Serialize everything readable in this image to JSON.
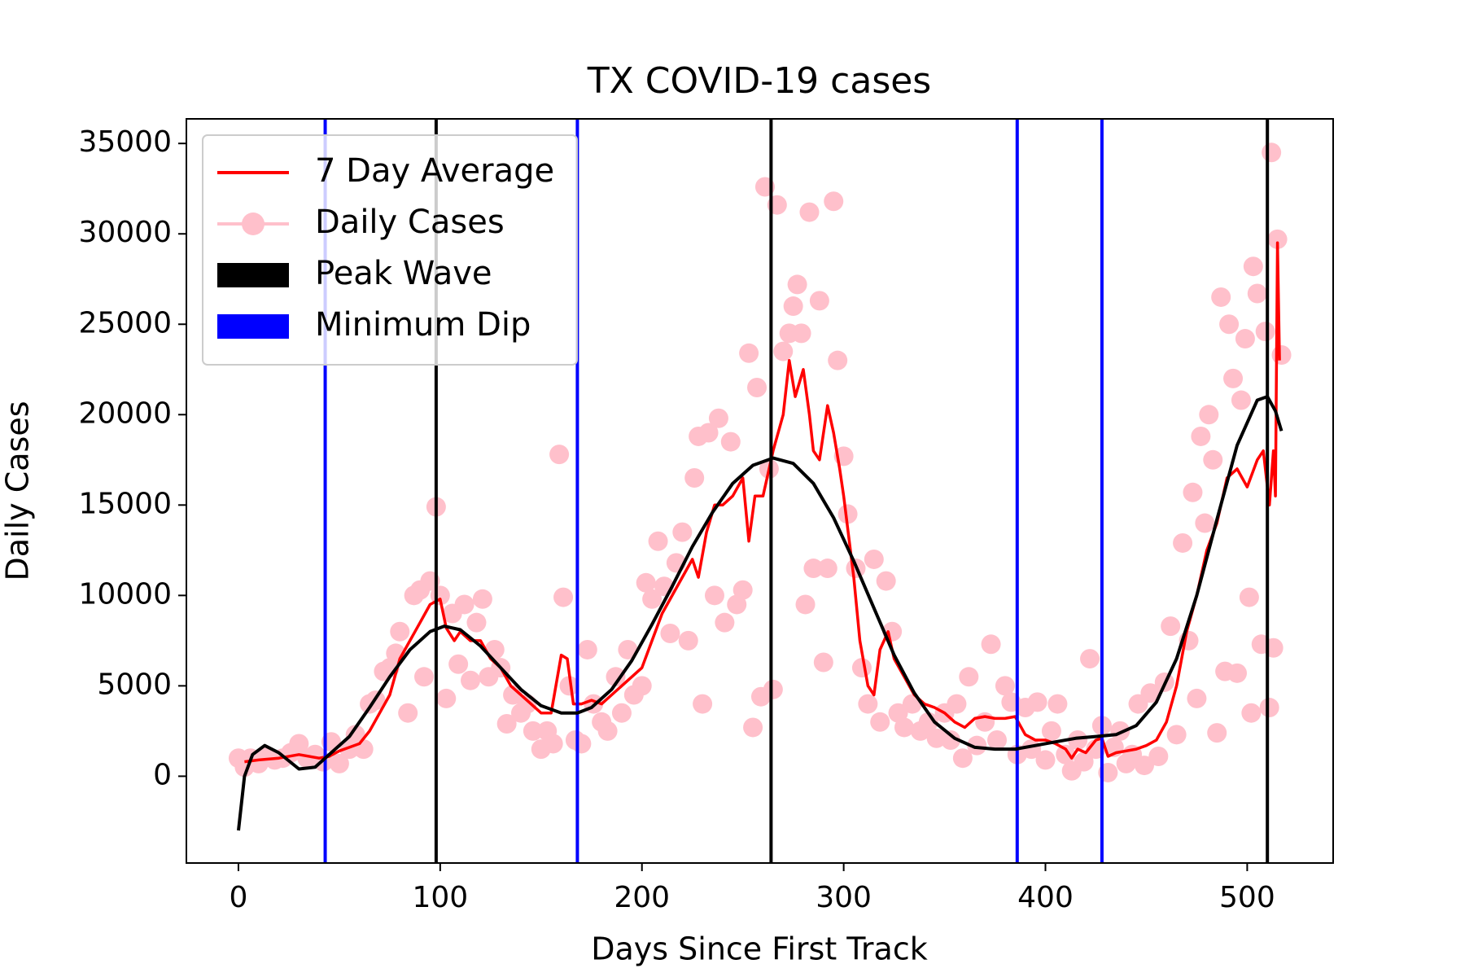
{
  "chart_data": {
    "type": "line",
    "title": "TX COVID-19 cases",
    "xlabel": "Days Since First Track",
    "ylabel": "Daily Cases",
    "xlim": [
      -25.8,
      542.6
    ],
    "ylim": [
      -4800,
      36360
    ],
    "xticks": [
      0,
      100,
      200,
      300,
      400,
      500
    ],
    "yticks": [
      0,
      5000,
      10000,
      15000,
      20000,
      25000,
      30000,
      35000
    ],
    "legend": "upper left",
    "series": [
      {
        "name": "7 Day Average",
        "color": "#ff0000",
        "marker": "none",
        "x": [
          3,
          10,
          20,
          30,
          40,
          45,
          50,
          55,
          60,
          65,
          70,
          75,
          80,
          85,
          90,
          95,
          100,
          103,
          107,
          110,
          115,
          120,
          125,
          130,
          135,
          140,
          145,
          150,
          155,
          160,
          163,
          166,
          170,
          175,
          180,
          185,
          190,
          195,
          200,
          205,
          210,
          215,
          220,
          225,
          228,
          232,
          236,
          240,
          245,
          250,
          253,
          256,
          260,
          265,
          270,
          273,
          276,
          280,
          283,
          285,
          288,
          292,
          295,
          298,
          300,
          305,
          308,
          312,
          315,
          318,
          322,
          325,
          330,
          335,
          340,
          345,
          350,
          355,
          360,
          365,
          370,
          375,
          380,
          385,
          390,
          395,
          400,
          405,
          410,
          413,
          416,
          420,
          425,
          428,
          431,
          435,
          440,
          445,
          450,
          455,
          460,
          465,
          470,
          475,
          480,
          485,
          490,
          495,
          500,
          505,
          508,
          511,
          513,
          514,
          515,
          516
        ],
        "values": [
          800,
          900,
          1000,
          1200,
          1000,
          1100,
          1400,
          1600,
          1800,
          2500,
          3500,
          4500,
          6500,
          7500,
          8500,
          9500,
          9800,
          8200,
          7500,
          8000,
          7500,
          7500,
          6500,
          6000,
          5000,
          4500,
          4000,
          3500,
          3500,
          6700,
          6500,
          4000,
          4000,
          4200,
          4000,
          4500,
          5000,
          5500,
          6000,
          7500,
          9000,
          10000,
          11000,
          12000,
          11000,
          13500,
          15000,
          15000,
          15500,
          16500,
          13000,
          15500,
          15500,
          18000,
          20000,
          23000,
          21000,
          22500,
          20000,
          18000,
          17500,
          20500,
          19000,
          17000,
          15500,
          11000,
          7500,
          5000,
          4500,
          7000,
          8000,
          6500,
          5500,
          4500,
          4000,
          3800,
          3500,
          3000,
          2700,
          3200,
          3300,
          3200,
          3200,
          3300,
          2300,
          2000,
          2000,
          1800,
          1500,
          1000,
          1500,
          1300,
          2000,
          2100,
          1100,
          1300,
          1400,
          1500,
          1700,
          2000,
          3000,
          5000,
          8000,
          10000,
          12500,
          14000,
          16500,
          17000,
          16000,
          17500,
          18000,
          15000,
          18000,
          15500,
          29500,
          23000
        ]
      },
      {
        "name": "Daily Cases",
        "color": "#ffc0cb",
        "marker": "circle",
        "x": [
          0,
          3,
          6,
          10,
          14,
          18,
          22,
          26,
          30,
          34,
          38,
          42,
          46,
          50,
          55,
          58,
          62,
          65,
          68,
          72,
          75,
          78,
          80,
          84,
          87,
          90,
          92,
          95,
          98,
          100,
          103,
          106,
          109,
          112,
          115,
          118,
          121,
          124,
          127,
          130,
          133,
          136,
          140,
          143,
          146,
          150,
          153,
          156,
          159,
          161,
          164,
          167,
          170,
          173,
          176,
          180,
          183,
          187,
          190,
          193,
          196,
          200,
          202,
          205,
          208,
          211,
          214,
          217,
          220,
          223,
          226,
          228,
          230,
          233,
          236,
          238,
          241,
          244,
          247,
          250,
          253,
          255,
          257,
          259,
          261,
          263,
          265,
          267,
          270,
          273,
          275,
          277,
          279,
          281,
          283,
          285,
          288,
          290,
          292,
          295,
          297,
          300,
          302,
          306,
          309,
          312,
          315,
          318,
          321,
          324,
          327,
          330,
          334,
          338,
          342,
          346,
          350,
          353,
          356,
          359,
          362,
          366,
          370,
          373,
          376,
          380,
          383,
          386,
          390,
          393,
          396,
          400,
          403,
          406,
          410,
          413,
          416,
          419,
          422,
          425,
          428,
          431,
          434,
          437,
          440,
          443,
          446,
          449,
          452,
          456,
          459,
          462,
          465,
          468,
          471,
          473,
          475,
          477,
          479,
          481,
          483,
          485,
          487,
          489,
          491,
          493,
          495,
          497,
          499,
          501,
          502,
          503,
          505,
          507,
          509,
          511,
          512,
          513,
          515,
          517
        ],
        "values": [
          1000,
          500,
          1000,
          700,
          1100,
          900,
          1000,
          1300,
          1800,
          1000,
          1200,
          800,
          1900,
          700,
          1500,
          2300,
          1500,
          4000,
          4200,
          5800,
          6000,
          6800,
          8000,
          3500,
          10000,
          10300,
          5500,
          10800,
          14900,
          10000,
          4300,
          9000,
          6200,
          9500,
          5300,
          8500,
          9800,
          5500,
          7000,
          6000,
          2900,
          4500,
          3500,
          4000,
          2500,
          1500,
          2500,
          1800,
          17800,
          9900,
          5000,
          2000,
          1800,
          7000,
          4000,
          3000,
          2500,
          5500,
          3500,
          7000,
          4500,
          5000,
          10700,
          9800,
          13000,
          10500,
          7900,
          11800,
          13500,
          7500,
          16500,
          18800,
          4000,
          19000,
          10000,
          19800,
          8500,
          18500,
          9500,
          10300,
          23400,
          2700,
          21500,
          4400,
          32600,
          17000,
          4800,
          31600,
          23500,
          24500,
          26000,
          27200,
          24500,
          9500,
          31200,
          11500,
          26300,
          6300,
          11500,
          31800,
          23000,
          17700,
          14500,
          11500,
          6000,
          4000,
          12000,
          3000,
          10800,
          8000,
          3500,
          2700,
          4000,
          2500,
          3000,
          2100,
          3500,
          2000,
          4000,
          1000,
          5500,
          1700,
          3000,
          7300,
          2000,
          5000,
          4100,
          1200,
          3800,
          1500,
          4100,
          900,
          2500,
          4000,
          1200,
          300,
          2000,
          800,
          6500,
          1500,
          2800,
          200,
          1600,
          2500,
          700,
          1200,
          4000,
          600,
          4600,
          1100,
          5200,
          8300,
          2300,
          12900,
          7500,
          15700,
          4300,
          18800,
          14000,
          20000,
          17500,
          2400,
          26500,
          5800,
          25000,
          22000,
          5700,
          20800,
          24200,
          9900,
          3500,
          28200,
          26700,
          7300,
          24600,
          3800,
          34500,
          7100,
          29700,
          23300
        ]
      }
    ],
    "fit": {
      "color": "#000000",
      "x": [
        0,
        3,
        7,
        13,
        20,
        30,
        38,
        45,
        55,
        65,
        75,
        85,
        95,
        102,
        110,
        120,
        130,
        140,
        150,
        160,
        168,
        175,
        185,
        195,
        205,
        215,
        225,
        235,
        245,
        255,
        265,
        275,
        285,
        295,
        305,
        315,
        325,
        335,
        345,
        355,
        365,
        375,
        385,
        395,
        405,
        415,
        425,
        435,
        445,
        455,
        465,
        475,
        485,
        495,
        505,
        510,
        514,
        517
      ],
      "values": [
        -3000,
        0,
        1200,
        1700,
        1300,
        400,
        500,
        1200,
        2200,
        3800,
        5500,
        7000,
        8000,
        8300,
        8100,
        7200,
        6000,
        4800,
        3900,
        3500,
        3500,
        3800,
        4800,
        6400,
        8400,
        10500,
        12700,
        14600,
        16200,
        17200,
        17600,
        17300,
        16200,
        14300,
        11900,
        9300,
        6700,
        4600,
        3000,
        2100,
        1600,
        1500,
        1500,
        1700,
        1900,
        2100,
        2200,
        2300,
        2800,
        4100,
        6500,
        10000,
        14200,
        18300,
        20800,
        21000,
        20200,
        19100
      ]
    },
    "vlines": [
      {
        "name": "Peak Wave",
        "color": "#000000",
        "x": [
          98,
          264,
          510
        ]
      },
      {
        "name": "Minimum Dip",
        "color": "#0000ff",
        "x": [
          43,
          168,
          386,
          428
        ]
      }
    ]
  }
}
